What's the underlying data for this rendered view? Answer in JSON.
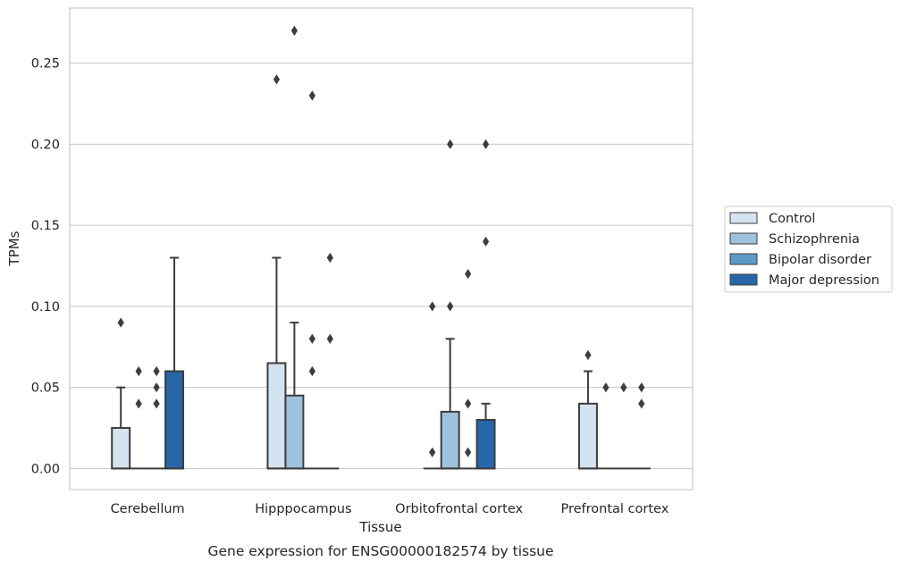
{
  "chart_data": {
    "type": "box",
    "title": "",
    "caption": "Gene expression for ENSG00000182574 by tissue",
    "xlabel": "Tissue",
    "ylabel": "TPMs",
    "ylim": [
      -0.013,
      0.284
    ],
    "yticks": [
      0.0,
      0.05,
      0.1,
      0.15,
      0.2,
      0.25
    ],
    "ytick_labels": [
      "0.00",
      "0.05",
      "0.10",
      "0.15",
      "0.20",
      "0.25"
    ],
    "grid": "horizontal",
    "legend_position": "right-center",
    "categories": [
      "Cerebellum",
      "Hipppocampus",
      "Orbitofrontal cortex",
      "Prefrontal cortex"
    ],
    "series": [
      {
        "name": "Control",
        "color": "#d3e3f1",
        "boxes": [
          {
            "q1": 0.0,
            "median": 0.0,
            "q3": 0.025,
            "whisker_low": 0.0,
            "whisker_high": 0.05,
            "outliers": [
              0.09
            ]
          },
          {
            "q1": 0.0,
            "median": 0.0,
            "q3": 0.065,
            "whisker_low": 0.0,
            "whisker_high": 0.13,
            "outliers": [
              0.24
            ]
          },
          {
            "q1": 0.0,
            "median": 0.0,
            "q3": 0.0,
            "whisker_low": 0.0,
            "whisker_high": 0.0,
            "outliers": [
              0.01,
              0.1
            ]
          },
          {
            "q1": 0.0,
            "median": 0.0,
            "q3": 0.04,
            "whisker_low": 0.0,
            "whisker_high": 0.06,
            "outliers": [
              0.07
            ]
          }
        ]
      },
      {
        "name": "Schizophrenia",
        "color": "#9dc3dc",
        "boxes": [
          {
            "q1": 0.0,
            "median": 0.0,
            "q3": 0.0,
            "whisker_low": 0.0,
            "whisker_high": 0.0,
            "outliers": [
              0.04,
              0.06
            ]
          },
          {
            "q1": 0.0,
            "median": 0.0,
            "q3": 0.045,
            "whisker_low": 0.0,
            "whisker_high": 0.09,
            "outliers": [
              0.27
            ]
          },
          {
            "q1": 0.0,
            "median": 0.0,
            "q3": 0.035,
            "whisker_low": 0.0,
            "whisker_high": 0.08,
            "outliers": [
              0.1,
              0.2
            ]
          },
          {
            "q1": 0.0,
            "median": 0.0,
            "q3": 0.0,
            "whisker_low": 0.0,
            "whisker_high": 0.0,
            "outliers": [
              0.05
            ]
          }
        ]
      },
      {
        "name": "Bipolar disorder",
        "color": "#5d9ac7",
        "boxes": [
          {
            "q1": 0.0,
            "median": 0.0,
            "q3": 0.0,
            "whisker_low": 0.0,
            "whisker_high": 0.0,
            "outliers": [
              0.04,
              0.05,
              0.06
            ]
          },
          {
            "q1": 0.0,
            "median": 0.0,
            "q3": 0.0,
            "whisker_low": 0.0,
            "whisker_high": 0.0,
            "outliers": [
              0.06,
              0.08,
              0.23
            ]
          },
          {
            "q1": 0.0,
            "median": 0.0,
            "q3": 0.0,
            "whisker_low": 0.0,
            "whisker_high": 0.0,
            "outliers": [
              0.01,
              0.04,
              0.12
            ]
          },
          {
            "q1": 0.0,
            "median": 0.0,
            "q3": 0.0,
            "whisker_low": 0.0,
            "whisker_high": 0.0,
            "outliers": [
              0.05
            ]
          }
        ]
      },
      {
        "name": "Major depression",
        "color": "#2766a8",
        "boxes": [
          {
            "q1": 0.0,
            "median": 0.0,
            "q3": 0.06,
            "whisker_low": 0.0,
            "whisker_high": 0.13,
            "outliers": []
          },
          {
            "q1": 0.0,
            "median": 0.0,
            "q3": 0.0,
            "whisker_low": 0.0,
            "whisker_high": 0.0,
            "outliers": [
              0.08,
              0.13
            ]
          },
          {
            "q1": 0.0,
            "median": 0.0,
            "q3": 0.03,
            "whisker_low": 0.0,
            "whisker_high": 0.04,
            "outliers": [
              0.14,
              0.2
            ]
          },
          {
            "q1": 0.0,
            "median": 0.0,
            "q3": 0.0,
            "whisker_low": 0.0,
            "whisker_high": 0.0,
            "outliers": [
              0.04,
              0.05
            ]
          }
        ]
      }
    ]
  }
}
